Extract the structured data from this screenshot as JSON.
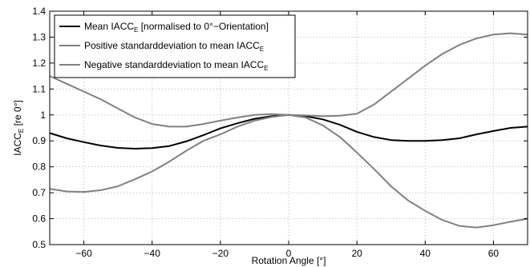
{
  "chart_data": {
    "type": "line",
    "xlabel": "Rotation Angle [°]",
    "ylabel": "IACC",
    "ylabel_sub": "E",
    "ylabel_suffix": " [re 0°]",
    "xlim": [
      -70,
      70
    ],
    "ylim": [
      0.5,
      1.4
    ],
    "xticks": [
      -60,
      -40,
      -20,
      0,
      20,
      40,
      60
    ],
    "xtick_labels": [
      "−60",
      "−40",
      "−20",
      "0",
      "20",
      "40",
      "60"
    ],
    "yticks": [
      0.5,
      0.6,
      0.7,
      0.8,
      0.9,
      1.0,
      1.1,
      1.2,
      1.3,
      1.4
    ],
    "ytick_labels": [
      "0.5",
      "0.6",
      "0.7",
      "0.8",
      "0.9",
      "1",
      "1.1",
      "1.2",
      "1.3",
      "1.4"
    ],
    "grid": true,
    "legend_position": "top-left",
    "series": [
      {
        "name": "Mean IACC",
        "name_sub": "E",
        "name_suffix": " [normalised to 0°−Orientation]",
        "color": "#000000",
        "x": [
          -70,
          -65,
          -60,
          -55,
          -50,
          -45,
          -40,
          -35,
          -30,
          -25,
          -20,
          -15,
          -10,
          -5,
          0,
          5,
          10,
          15,
          20,
          25,
          30,
          35,
          40,
          45,
          50,
          55,
          60,
          65,
          70
        ],
        "values": [
          0.93,
          0.91,
          0.895,
          0.882,
          0.873,
          0.87,
          0.872,
          0.88,
          0.898,
          0.922,
          0.948,
          0.968,
          0.985,
          0.995,
          1.0,
          0.995,
          0.983,
          0.962,
          0.935,
          0.915,
          0.903,
          0.9,
          0.9,
          0.903,
          0.91,
          0.925,
          0.938,
          0.95,
          0.955
        ]
      },
      {
        "name": "Positive standarddeviation to mean IACC",
        "name_sub": "E",
        "name_suffix": "",
        "color": "#808080",
        "x": [
          -70,
          -65,
          -60,
          -55,
          -50,
          -45,
          -40,
          -35,
          -30,
          -25,
          -20,
          -15,
          -10,
          -5,
          0,
          5,
          10,
          15,
          20,
          25,
          30,
          35,
          40,
          45,
          50,
          55,
          60,
          65,
          70
        ],
        "values": [
          1.15,
          1.12,
          1.09,
          1.06,
          1.025,
          0.99,
          0.965,
          0.955,
          0.955,
          0.965,
          0.978,
          0.99,
          1.0,
          1.003,
          1.0,
          0.998,
          0.995,
          0.997,
          1.005,
          1.04,
          1.09,
          1.14,
          1.19,
          1.235,
          1.27,
          1.295,
          1.31,
          1.315,
          1.31
        ]
      },
      {
        "name": "Negative standarddeviation to mean IACC",
        "name_sub": "E",
        "name_suffix": "",
        "color": "#808080",
        "x": [
          -70,
          -65,
          -60,
          -55,
          -50,
          -45,
          -40,
          -35,
          -30,
          -25,
          -20,
          -15,
          -10,
          -5,
          0,
          5,
          10,
          15,
          20,
          25,
          30,
          35,
          40,
          45,
          50,
          55,
          60,
          65,
          70
        ],
        "values": [
          0.715,
          0.705,
          0.703,
          0.71,
          0.725,
          0.752,
          0.782,
          0.82,
          0.862,
          0.9,
          0.925,
          0.955,
          0.978,
          0.992,
          1.0,
          0.99,
          0.96,
          0.915,
          0.855,
          0.792,
          0.725,
          0.67,
          0.63,
          0.595,
          0.572,
          0.566,
          0.575,
          0.588,
          0.6
        ]
      }
    ]
  }
}
